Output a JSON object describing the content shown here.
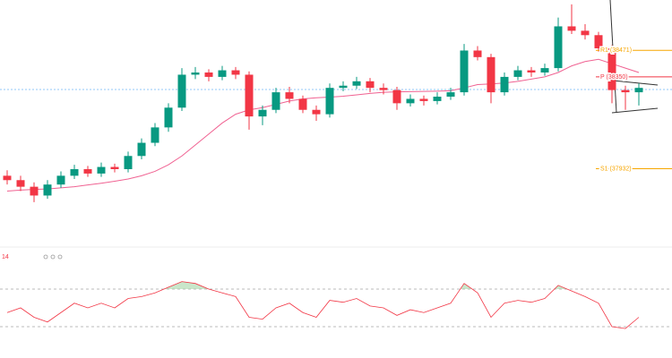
{
  "chart_data": [
    {
      "type": "candlestick",
      "open": [
        37900,
        37880,
        37850,
        37810,
        37860,
        37900,
        37930,
        37910,
        37940,
        37930,
        37990,
        38050,
        38120,
        38210,
        38360,
        38370,
        38350,
        38380,
        38360,
        38170,
        38200,
        38280,
        38250,
        38200,
        38180,
        38300,
        38310,
        38330,
        38300,
        38290,
        38230,
        38250,
        38240,
        38260,
        38280,
        38470,
        38440,
        38280,
        38350,
        38380,
        38370,
        38390,
        38580,
        38560,
        38540,
        38480,
        38290,
        38280
      ],
      "high": [
        37925,
        37900,
        37870,
        37880,
        37920,
        37950,
        37945,
        37960,
        37955,
        38010,
        38070,
        38140,
        38230,
        38390,
        38395,
        38385,
        38400,
        38395,
        38375,
        38220,
        38300,
        38305,
        38265,
        38220,
        38320,
        38330,
        38350,
        38345,
        38320,
        38305,
        38270,
        38265,
        38280,
        38300,
        38500,
        38490,
        38455,
        38370,
        38400,
        38395,
        38410,
        38620,
        38680,
        38590,
        38555,
        38495,
        38310,
        38320
      ],
      "low": [
        37860,
        37830,
        37780,
        37795,
        37845,
        37885,
        37895,
        37895,
        37915,
        37915,
        37975,
        38035,
        38100,
        38195,
        38340,
        38330,
        38335,
        38340,
        38110,
        38130,
        38185,
        38230,
        38185,
        38150,
        38165,
        38285,
        38295,
        38280,
        38270,
        38200,
        38215,
        38220,
        38225,
        38245,
        38265,
        38425,
        38230,
        38265,
        38335,
        38350,
        38355,
        38375,
        38545,
        38520,
        38465,
        38230,
        38200,
        38220
      ],
      "close": [
        37880,
        37850,
        37810,
        37860,
        37900,
        37930,
        37910,
        37940,
        37930,
        37990,
        38050,
        38120,
        38210,
        38360,
        38370,
        38350,
        38380,
        38360,
        38170,
        38200,
        38280,
        38250,
        38200,
        38180,
        38300,
        38310,
        38330,
        38300,
        38290,
        38230,
        38250,
        38240,
        38260,
        38280,
        38470,
        38440,
        38280,
        38350,
        38380,
        38370,
        38390,
        38580,
        38560,
        38540,
        38480,
        38290,
        38280,
        38300
      ],
      "up_color": "#089981",
      "down_color": "#f23645",
      "ma_values": [
        37830,
        37835,
        37838,
        37840,
        37845,
        37850,
        37858,
        37866,
        37875,
        37885,
        37900,
        37920,
        37950,
        37990,
        38040,
        38090,
        38140,
        38180,
        38200,
        38210,
        38225,
        38240,
        38250,
        38255,
        38258,
        38262,
        38268,
        38275,
        38280,
        38282,
        38283,
        38284,
        38285,
        38287,
        38300,
        38315,
        38318,
        38322,
        38330,
        38340,
        38350,
        38370,
        38400,
        38420,
        38430,
        38410,
        38390,
        38370
      ],
      "ma_color": "#f06292",
      "ylim": [
        37600,
        38700
      ],
      "levels": [
        {
          "label": "R1 (38471)",
          "value": 38471,
          "color": "#f7a600"
        },
        {
          "label": "P (38350)",
          "value": 38350,
          "color": "#f23645"
        },
        {
          "label": "S1 (37932)",
          "value": 37932,
          "color": "#f7a600"
        }
      ]
    },
    {
      "type": "line",
      "title": "14",
      "values": [
        45,
        50,
        40,
        35,
        45,
        55,
        50,
        55,
        50,
        60,
        62,
        66,
        72,
        78,
        76,
        70,
        66,
        62,
        40,
        38,
        50,
        55,
        45,
        40,
        58,
        56,
        60,
        52,
        50,
        42,
        48,
        45,
        50,
        55,
        76,
        66,
        40,
        55,
        58,
        56,
        60,
        74,
        68,
        62,
        55,
        30,
        28,
        40
      ],
      "color": "#f23645",
      "fill_above": 70,
      "fill_color": "#a5d6a7",
      "ylim": [
        0,
        100
      ],
      "levels": [
        70,
        30
      ]
    }
  ]
}
